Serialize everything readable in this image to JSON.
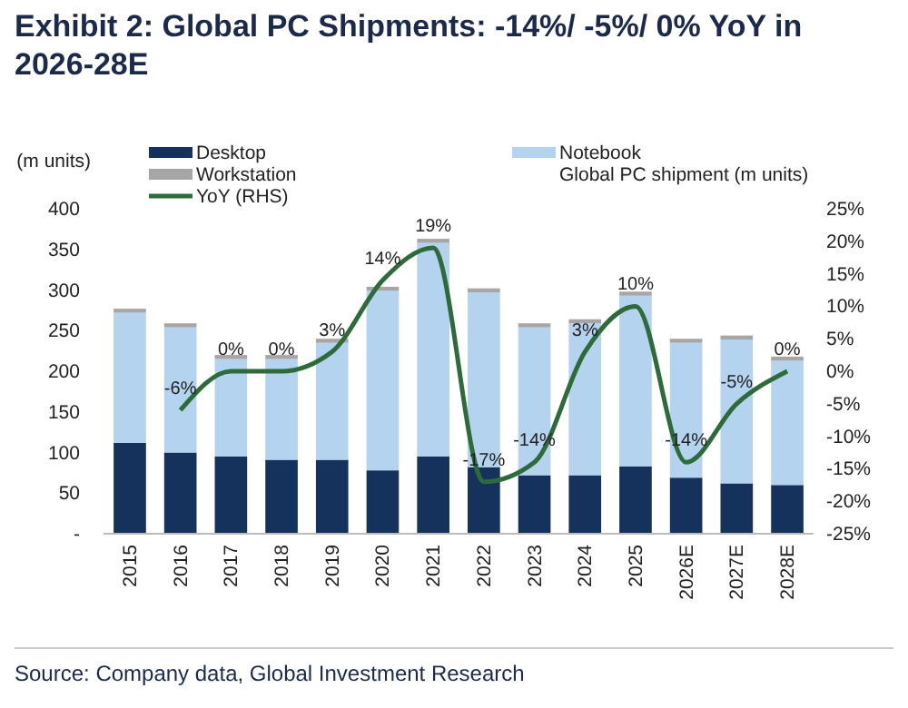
{
  "chart_data": {
    "type": "bar",
    "title": "Exhibit 2: Global PC Shipments: -14%/ -5%/ 0% YoY in 2026-28E",
    "ylabel": "(m units)",
    "categories": [
      "2015",
      "2016",
      "2017",
      "2018",
      "2019",
      "2020",
      "2021",
      "2022",
      "2023",
      "2024",
      "2025",
      "2026E",
      "2027E",
      "2028E"
    ],
    "stacked": true,
    "series": [
      {
        "name": "Desktop",
        "color": "#14325c",
        "values": [
          112,
          100,
          95,
          91,
          91,
          78,
          95,
          82,
          72,
          72,
          83,
          69,
          62,
          60
        ]
      },
      {
        "name": "Notebook",
        "color": "#b3d3ee",
        "values": [
          160,
          154,
          120,
          124,
          144,
          221,
          263,
          215,
          182,
          187,
          210,
          166,
          177,
          153
        ]
      },
      {
        "name": "Workstation",
        "color": "#a6a6a6",
        "values": [
          5,
          5,
          5,
          5,
          5,
          5,
          5,
          5,
          5,
          5,
          5,
          5,
          5,
          5
        ]
      },
      {
        "name": "YoY (RHS)",
        "type": "line",
        "axis": "y2",
        "color": "#2e6b3a",
        "values": [
          null,
          -6,
          0,
          0,
          3,
          14,
          19,
          -17,
          -14,
          3,
          10,
          -14,
          -5,
          0
        ],
        "value_labels": [
          null,
          "-6%",
          "0%",
          "0%",
          "3%",
          "14%",
          "19%",
          "-17%",
          "-14%",
          "3%",
          "10%",
          "-14%",
          "-5%",
          "0%"
        ]
      }
    ],
    "ylim": [
      0,
      400
    ],
    "yticks": [
      {
        "value": 0,
        "label": "-"
      },
      50,
      100,
      150,
      200,
      250,
      300,
      350,
      400
    ],
    "y2lim": [
      -25,
      25
    ],
    "y2ticks": [
      {
        "value": -25,
        "label": "-25%"
      },
      {
        "value": -20,
        "label": "-20%"
      },
      {
        "value": -15,
        "label": "-15%"
      },
      {
        "value": -10,
        "label": "-10%"
      },
      {
        "value": -5,
        "label": "-5%"
      },
      {
        "value": 0,
        "label": "0%"
      },
      {
        "value": 5,
        "label": "5%"
      },
      {
        "value": 10,
        "label": "10%"
      },
      {
        "value": 15,
        "label": "15%"
      },
      {
        "value": 20,
        "label": "20%"
      },
      {
        "value": 25,
        "label": "25%"
      }
    ],
    "legend": "top",
    "grid": false,
    "annotations": [
      "Global PC shipment (m units)",
      "Source: Company data, Global Investment Research"
    ]
  }
}
